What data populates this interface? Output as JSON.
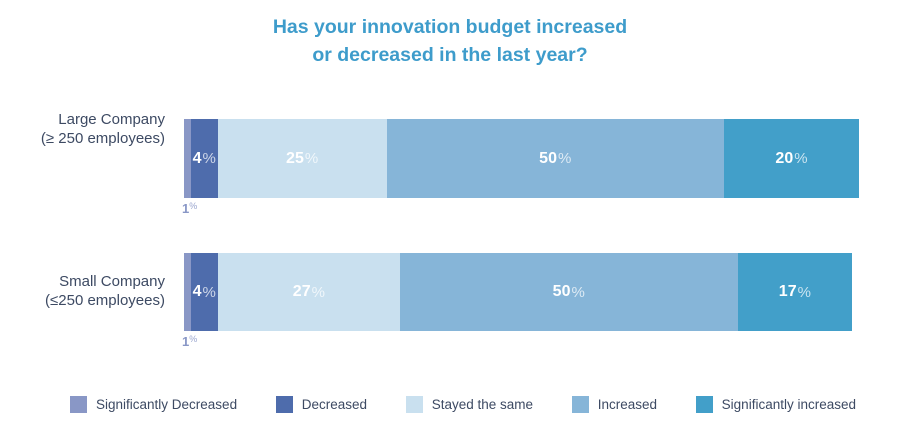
{
  "title": {
    "line1": "Has your innovation budget increased",
    "line2": "or decreased in the last year?"
  },
  "chart_data": {
    "type": "bar",
    "orientation": "horizontal_stacked",
    "title": "Has your innovation budget increased or decreased in the last year?",
    "unit": "%",
    "xlim": [
      0,
      100
    ],
    "grid": false,
    "legend_position": "bottom",
    "categories": [
      "Significantly Decreased",
      "Decreased",
      "Stayed the same",
      "Increased",
      "Significantly increased"
    ],
    "category_keys": [
      "significantly-decreased",
      "decreased",
      "stayed-the-same",
      "increased",
      "significantly-increased"
    ],
    "category_colors": [
      "#8997C6",
      "#4E6CAC",
      "#C9E0EF",
      "#86B5D8",
      "#429FC9"
    ],
    "series": [
      {
        "name": "Large Company (≥ 250 employees)",
        "label_lines": [
          "Large Company",
          "(≥ 250 employees)"
        ],
        "values": [
          1,
          4,
          25,
          50,
          20
        ]
      },
      {
        "name": "Small Company (≤250 employees)",
        "label_lines": [
          "Small Company",
          "(≤250 employees)"
        ],
        "values": [
          1,
          4,
          27,
          50,
          17
        ]
      }
    ]
  },
  "colors": {
    "background": "#FFFFFF",
    "title_text": "#3E9CCB",
    "row_label_text": "#3D4A63",
    "legend_text": "#3D4A63",
    "inside_bar_label": "#FFFFFF",
    "below_bar_label": "#8997C6"
  }
}
